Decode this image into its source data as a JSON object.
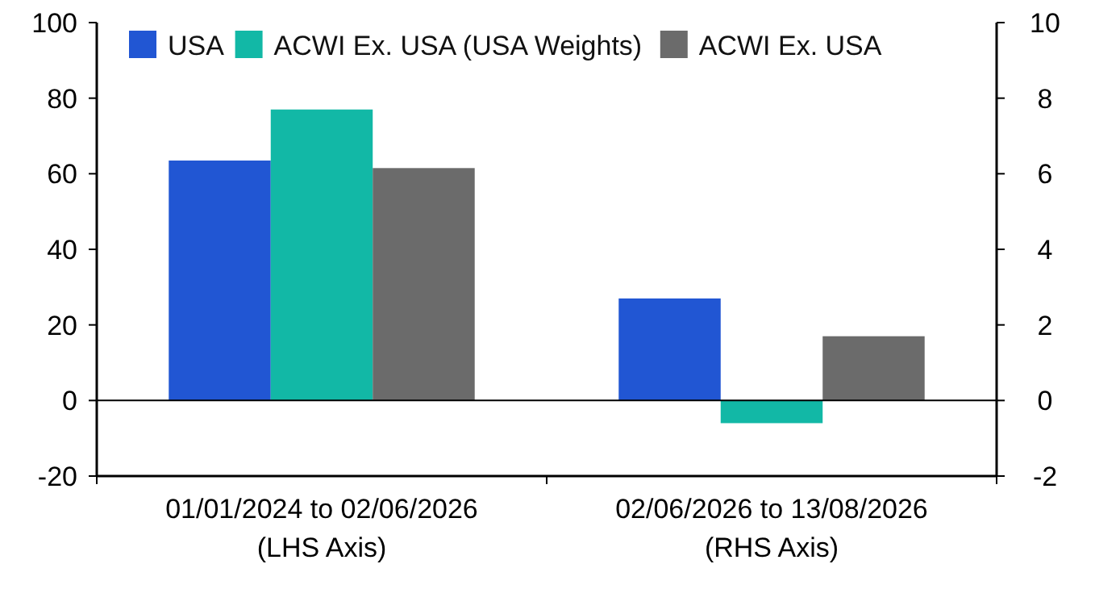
{
  "chart_data": {
    "type": "bar",
    "categories": [
      "01/01/2024 to 02/06/2026\n(LHS Axis)",
      "02/06/2026 to 13/08/2026\n(RHS Axis)"
    ],
    "series": [
      {
        "name": "USA",
        "color": "#2156d3",
        "values": [
          63.5,
          null
        ]
      },
      {
        "name": "ACWI Ex. USA (USA Weights)",
        "color": "#12b8a6",
        "values": [
          77,
          null
        ]
      },
      {
        "name": "ACWI Ex. USA",
        "color": "#6b6b6b",
        "values": [
          61.5,
          null
        ]
      },
      {
        "color": "#2156d3",
        "values": [
          null,
          2.7
        ],
        "axis": "y2"
      },
      {
        "color": "#12b8a6",
        "values": [
          null,
          -0.6
        ],
        "axis": "y2"
      },
      {
        "color": "#6b6b6b",
        "values": [
          null,
          1.7
        ],
        "axis": "y2"
      }
    ],
    "ylim": [
      -20,
      100
    ],
    "yticks": [
      -20,
      0,
      20,
      40,
      60,
      80,
      100
    ],
    "y2lim": [
      -2,
      10
    ],
    "y2ticks": [
      -2,
      0,
      2,
      4,
      6,
      8,
      10
    ],
    "legend": "top",
    "ref_lines": [
      {
        "axis": "y",
        "value": 0,
        "color": "#000000"
      }
    ]
  }
}
